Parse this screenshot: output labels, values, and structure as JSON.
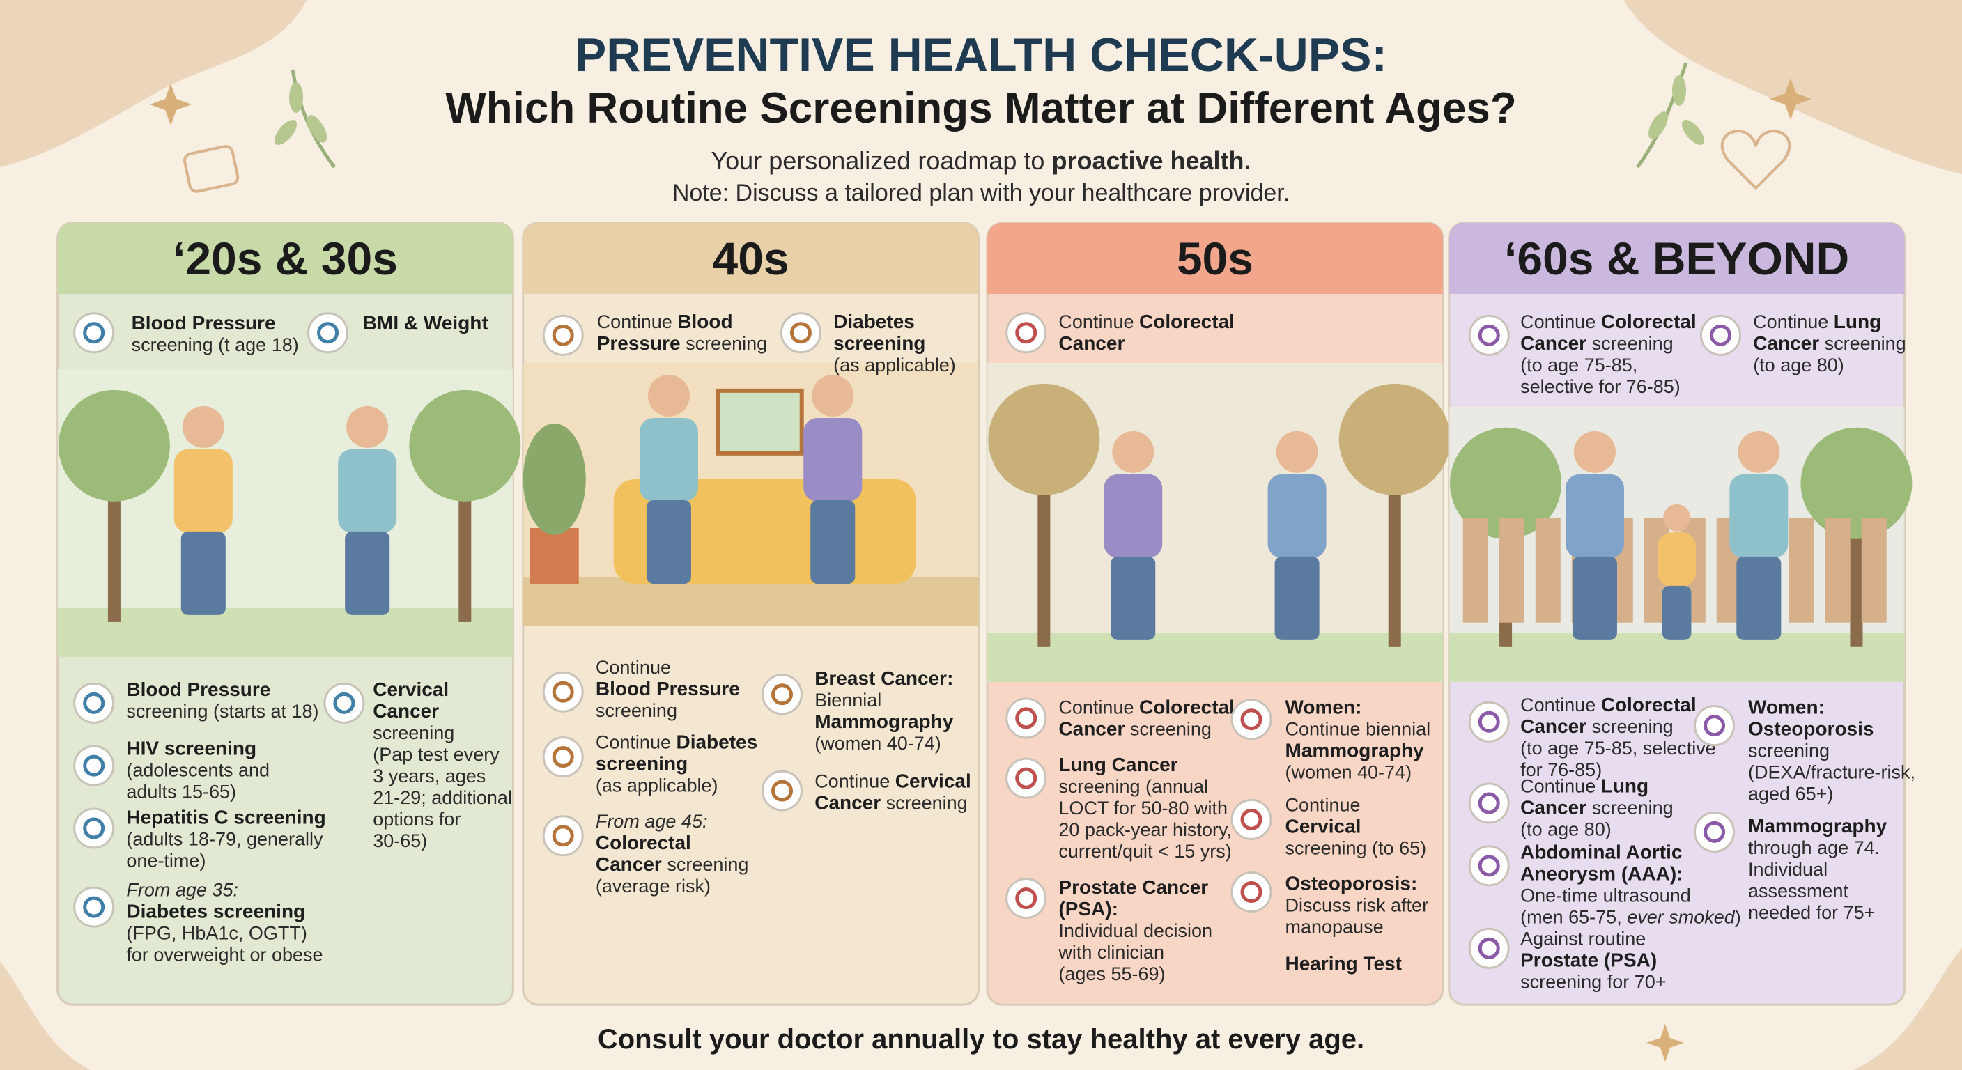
{
  "header": {
    "title": "PREVENTIVE HEALTH CHECK-UPS:",
    "subtitle": "Which Routine Screenings Matter at Different Ages?",
    "tagline": [
      {
        "text": "Your personalized roadmap to "
      },
      {
        "text": "proactive health.",
        "bold": true
      }
    ],
    "note": "Note: Discuss a tailored plan with your healthcare provider."
  },
  "panels": [
    {
      "title": "‘20s & 30s",
      "top_items": [
        {
          "lines": [
            [
              {
                "text": "Blood Pressure",
                "bold": true
              }
            ],
            [
              {
                "text": "screening (t age 18)"
              }
            ]
          ]
        },
        {
          "lines": [
            [
              {
                "text": "BMI & Weight",
                "bold": true
              }
            ]
          ]
        }
      ],
      "items": [
        {
          "lines": [
            [
              {
                "text": "Blood Pressure",
                "bold": true
              }
            ],
            [
              {
                "text": "screening (starts at 18)"
              }
            ]
          ]
        },
        {
          "lines": [
            [
              {
                "text": "HIV screening",
                "bold": true
              }
            ],
            [
              {
                "text": "(adolescents and"
              }
            ],
            [
              {
                "text": "adults 15-65)"
              }
            ]
          ]
        },
        {
          "lines": [
            [
              {
                "text": "Hepatitis C screening",
                "bold": true
              }
            ],
            [
              {
                "text": "(adults 18-79, generally"
              }
            ],
            [
              {
                "text": "one-time)"
              }
            ]
          ]
        },
        {
          "lines": [
            [
              {
                "text": "From age 35:",
                "italic": true
              }
            ],
            [
              {
                "text": "Diabetes screening",
                "bold": true
              }
            ],
            [
              {
                "text": "(FPG, HbA1c, OGTT)"
              }
            ],
            [
              {
                "text": "for overweight or obese"
              }
            ]
          ]
        },
        {
          "lines": [
            [
              {
                "text": "Cervical",
                "bold": true
              }
            ],
            [
              {
                "text": "Cancer",
                "bold": true
              }
            ],
            [
              {
                "text": "screening"
              }
            ],
            [
              {
                "text": "(Pap test every"
              }
            ],
            [
              {
                "text": "3 years, ages"
              }
            ],
            [
              {
                "text": "21-29; additional"
              }
            ],
            [
              {
                "text": "options for"
              }
            ],
            [
              {
                "text": "30-65)"
              }
            ]
          ]
        }
      ]
    },
    {
      "title": "40s",
      "top_items": [
        {
          "lines": [
            [
              {
                "text": "Continue "
              },
              {
                "text": "Blood",
                "bold": true
              }
            ],
            [
              {
                "text": "Pressure",
                "bold": true
              },
              {
                "text": " screening"
              }
            ]
          ]
        },
        {
          "lines": [
            [
              {
                "text": "Diabetes",
                "bold": true
              }
            ],
            [
              {
                "text": "screening",
                "bold": true
              }
            ],
            [
              {
                "text": "(as applicable)"
              }
            ]
          ]
        }
      ],
      "items": [
        {
          "lines": [
            [
              {
                "text": "Continue"
              }
            ],
            [
              {
                "text": "Blood Pressure",
                "bold": true
              }
            ],
            [
              {
                "text": "screening"
              }
            ]
          ]
        },
        {
          "lines": [
            [
              {
                "text": "Continue "
              },
              {
                "text": "Diabetes",
                "bold": true
              }
            ],
            [
              {
                "text": "screening",
                "bold": true
              }
            ],
            [
              {
                "text": "(as applicable)"
              }
            ]
          ]
        },
        {
          "lines": [
            [
              {
                "text": "From age 45:",
                "italic": true
              }
            ],
            [
              {
                "text": "Colorectal",
                "bold": true
              }
            ],
            [
              {
                "text": "Cancer",
                "bold": true
              },
              {
                "text": " screening"
              }
            ],
            [
              {
                "text": "(average risk)"
              }
            ]
          ]
        },
        {
          "lines": [
            [
              {
                "text": "Breast Cancer:",
                "bold": true
              }
            ],
            [
              {
                "text": "Biennial"
              }
            ],
            [
              {
                "text": "Mammography",
                "bold": true
              }
            ],
            [
              {
                "text": "(women 40-74)"
              }
            ]
          ]
        },
        {
          "lines": [
            [
              {
                "text": "Continue "
              },
              {
                "text": "Cervical",
                "bold": true
              }
            ],
            [
              {
                "text": "Cancer",
                "bold": true
              },
              {
                "text": " screening"
              }
            ]
          ]
        }
      ]
    },
    {
      "title": "50s",
      "top_items": [
        {
          "lines": [
            [
              {
                "text": "Continue "
              },
              {
                "text": "Colorectal",
                "bold": true
              }
            ],
            [
              {
                "text": "Cancer",
                "bold": true
              }
            ]
          ]
        }
      ],
      "items": [
        {
          "lines": [
            [
              {
                "text": "Continue "
              },
              {
                "text": "Colorectal",
                "bold": true
              }
            ],
            [
              {
                "text": "Cancer",
                "bold": true
              },
              {
                "text": " screening"
              }
            ]
          ]
        },
        {
          "lines": [
            [
              {
                "text": "Lung Cancer",
                "bold": true
              }
            ],
            [
              {
                "text": "screening (annual"
              }
            ],
            [
              {
                "text": "LOCT for 50-80 with"
              }
            ],
            [
              {
                "text": "20 pack-year history,"
              }
            ],
            [
              {
                "text": "current/quit < 15 yrs)"
              }
            ]
          ]
        },
        {
          "lines": [
            [
              {
                "text": "Prostate Cancer",
                "bold": true
              }
            ],
            [
              {
                "text": "(PSA):",
                "bold": true
              }
            ],
            [
              {
                "text": "Individual decision"
              }
            ],
            [
              {
                "text": "with clinician"
              }
            ],
            [
              {
                "text": "(ages 55-69)"
              }
            ]
          ]
        },
        {
          "lines": [
            [
              {
                "text": "Women:",
                "bold": true
              }
            ],
            [
              {
                "text": "Continue biennial"
              }
            ],
            [
              {
                "text": "Mammography",
                "bold": true
              }
            ],
            [
              {
                "text": "(women 40-74)"
              }
            ]
          ]
        },
        {
          "lines": [
            [
              {
                "text": "Continue"
              }
            ],
            [
              {
                "text": "Cervical",
                "bold": true
              }
            ],
            [
              {
                "text": "screening (to 65)"
              }
            ]
          ]
        },
        {
          "lines": [
            [
              {
                "text": "Osteoporosis:",
                "bold": true
              }
            ],
            [
              {
                "text": "Discuss risk after"
              }
            ],
            [
              {
                "text": "manopause"
              }
            ]
          ]
        },
        {
          "lines": [
            [
              {
                "text": "Hearing Test",
                "bold": true
              }
            ]
          ]
        }
      ]
    },
    {
      "title": "‘60s & BEYOND",
      "top_items": [
        {
          "lines": [
            [
              {
                "text": "Continue "
              },
              {
                "text": "Colorectal",
                "bold": true
              }
            ],
            [
              {
                "text": "Cancer",
                "bold": true
              },
              {
                "text": " screening"
              }
            ],
            [
              {
                "text": "(to age 75-85,"
              }
            ],
            [
              {
                "text": "selective for 76-85)"
              }
            ]
          ]
        },
        {
          "lines": [
            [
              {
                "text": "Continue "
              },
              {
                "text": "Lung",
                "bold": true
              }
            ],
            [
              {
                "text": "Cancer",
                "bold": true
              },
              {
                "text": " screening"
              }
            ],
            [
              {
                "text": "(to age 80)"
              }
            ]
          ]
        }
      ],
      "items": [
        {
          "lines": [
            [
              {
                "text": "Continue "
              },
              {
                "text": "Colorectal",
                "bold": true
              }
            ],
            [
              {
                "text": "Cancer",
                "bold": true
              },
              {
                "text": " screening"
              }
            ],
            [
              {
                "text": "(to age 75-85, selective"
              }
            ],
            [
              {
                "text": "for 76-85)"
              }
            ]
          ]
        },
        {
          "lines": [
            [
              {
                "text": "Continue "
              },
              {
                "text": "Lung",
                "bold": true
              }
            ],
            [
              {
                "text": "Cancer",
                "bold": true
              },
              {
                "text": " screening"
              }
            ],
            [
              {
                "text": "(to age 80)"
              }
            ]
          ]
        },
        {
          "lines": [
            [
              {
                "text": "Abdominal Aortic",
                "bold": true
              }
            ],
            [
              {
                "text": "Aneorysm (AAA):",
                "bold": true
              }
            ],
            [
              {
                "text": "One-time ultrasound"
              }
            ],
            [
              {
                "text": "(men 65-75, "
              },
              {
                "text": "ever smoked",
                "italic": true
              },
              {
                "text": ")"
              }
            ]
          ]
        },
        {
          "lines": [
            [
              {
                "text": "Against routine"
              }
            ],
            [
              {
                "text": "Prostate (PSA)",
                "bold": true
              }
            ],
            [
              {
                "text": "screening for 70+"
              }
            ]
          ]
        },
        {
          "lines": [
            [
              {
                "text": "Women:",
                "bold": true
              }
            ],
            [
              {
                "text": "Osteoporosis",
                "bold": true
              }
            ],
            [
              {
                "text": "screening"
              }
            ],
            [
              {
                "text": "(DEXA/fracture-risk,"
              }
            ],
            [
              {
                "text": "aged 65+)"
              }
            ]
          ]
        },
        {
          "lines": [
            [
              {
                "text": "Mammography",
                "bold": true
              }
            ],
            [
              {
                "text": "through age 74."
              }
            ],
            [
              {
                "text": "Individual"
              }
            ],
            [
              {
                "text": "assessment"
              }
            ],
            [
              {
                "text": "needed for 75+"
              }
            ]
          ]
        }
      ]
    }
  ],
  "footer": "Consult your doctor annually to stay healthy at every age."
}
